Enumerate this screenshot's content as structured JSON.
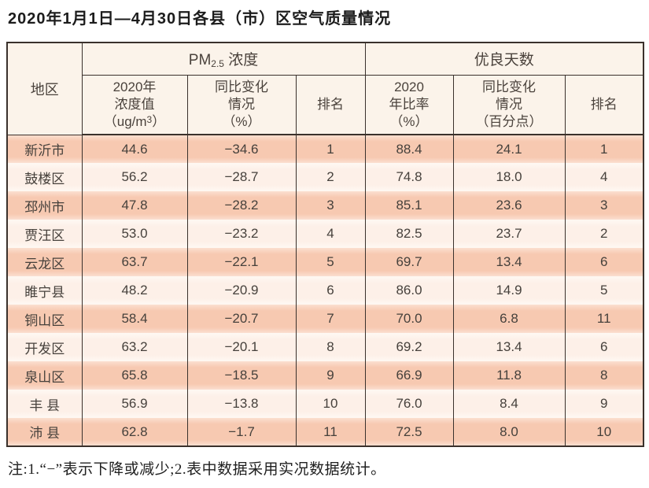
{
  "title": "2020年1月1日—4月30日各县（市）区空气质量情况",
  "colors": {
    "row_odd_bg": "#f7c9b1",
    "row_even_bg": "#fdf0e8",
    "header_bg": "#fbf3ea",
    "border": "#3a312c"
  },
  "table": {
    "header": {
      "region": "地区",
      "pm_group": {
        "prefix": "PM",
        "sub": "2.5",
        "suffix": " 浓度"
      },
      "good_days_group": "优良天数",
      "pm_value": {
        "line1": "2020年",
        "line2": "浓度值",
        "unit_prefix": "（ug/m",
        "unit_sup": "3",
        "unit_suffix": "）"
      },
      "pm_change": {
        "line1": "同比变化",
        "line2": "情况",
        "line3": "（%）"
      },
      "pm_rank": "排名",
      "gd_rate": {
        "line1": "2020",
        "line2": "年比率",
        "line3": "（%）"
      },
      "gd_change": {
        "line1": "同比变化",
        "line2": "情况",
        "line3": "（百分点）"
      },
      "gd_rank": "排名"
    },
    "rows": [
      {
        "region": "新沂市",
        "pm_value": "44.6",
        "pm_change": "−34.6",
        "pm_rank": "1",
        "gd_rate": "88.4",
        "gd_change": "24.1",
        "gd_rank": "1"
      },
      {
        "region": "鼓楼区",
        "pm_value": "56.2",
        "pm_change": "−28.7",
        "pm_rank": "2",
        "gd_rate": "74.8",
        "gd_change": "18.0",
        "gd_rank": "4"
      },
      {
        "region": "邳州市",
        "pm_value": "47.8",
        "pm_change": "−28.2",
        "pm_rank": "3",
        "gd_rate": "85.1",
        "gd_change": "23.6",
        "gd_rank": "3"
      },
      {
        "region": "贾汪区",
        "pm_value": "53.0",
        "pm_change": "−23.2",
        "pm_rank": "4",
        "gd_rate": "82.5",
        "gd_change": "23.7",
        "gd_rank": "2"
      },
      {
        "region": "云龙区",
        "pm_value": "63.7",
        "pm_change": "−22.1",
        "pm_rank": "5",
        "gd_rate": "69.7",
        "gd_change": "13.4",
        "gd_rank": "6"
      },
      {
        "region": "睢宁县",
        "pm_value": "48.2",
        "pm_change": "−20.9",
        "pm_rank": "6",
        "gd_rate": "86.0",
        "gd_change": "14.9",
        "gd_rank": "5"
      },
      {
        "region": "铜山区",
        "pm_value": "58.4",
        "pm_change": "−20.7",
        "pm_rank": "7",
        "gd_rate": "70.0",
        "gd_change": "6.8",
        "gd_rank": "11"
      },
      {
        "region": "开发区",
        "pm_value": "63.2",
        "pm_change": "−20.1",
        "pm_rank": "8",
        "gd_rate": "69.2",
        "gd_change": "13.4",
        "gd_rank": "6"
      },
      {
        "region": "泉山区",
        "pm_value": "65.8",
        "pm_change": "−18.5",
        "pm_rank": "9",
        "gd_rate": "66.9",
        "gd_change": "11.8",
        "gd_rank": "8"
      },
      {
        "region": "丰 县",
        "pm_value": "56.9",
        "pm_change": "−13.8",
        "pm_rank": "10",
        "gd_rate": "76.0",
        "gd_change": "8.4",
        "gd_rank": "9"
      },
      {
        "region": "沛 县",
        "pm_value": "62.8",
        "pm_change": "−1.7",
        "pm_rank": "11",
        "gd_rate": "72.5",
        "gd_change": "8.0",
        "gd_rank": "10"
      }
    ]
  },
  "footnote": "注:1.“−”表示下降或减少;2.表中数据采用实况数据统计。"
}
